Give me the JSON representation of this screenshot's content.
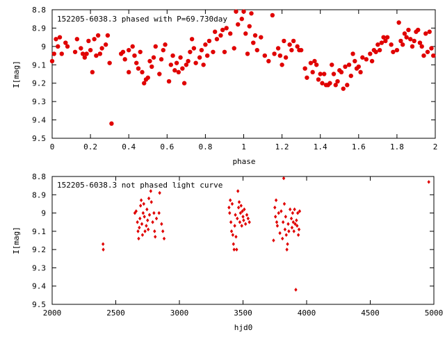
{
  "chart_data": [
    {
      "type": "scatter",
      "title": "152205-6038.3 phased with P=69.730day",
      "xlabel": "phase",
      "ylabel": "I[mag]",
      "xlim": [
        0,
        2
      ],
      "ylim": [
        9.5,
        8.8
      ],
      "y_inverted": true,
      "xticks": [
        "0",
        "0.2",
        "0.4",
        "0.6",
        "0.8",
        "1",
        "1.2",
        "1.4",
        "1.6",
        "1.8",
        "2"
      ],
      "xtick_values": [
        0,
        0.2,
        0.4,
        0.6,
        0.8,
        1.0,
        1.2,
        1.4,
        1.6,
        1.8,
        2.0
      ],
      "yticks": [
        "8.8",
        "8.9",
        "9",
        "9.1",
        "9.2",
        "9.3",
        "9.4",
        "9.5"
      ],
      "ytick_values": [
        8.8,
        8.9,
        9.0,
        9.1,
        9.2,
        9.3,
        9.4,
        9.5
      ],
      "grid": false,
      "marker_color": "#e00000",
      "points": [
        [
          0.0,
          9.08
        ],
        [
          0.01,
          9.04
        ],
        [
          0.02,
          8.96
        ],
        [
          0.03,
          9.0
        ],
        [
          0.04,
          8.95
        ],
        [
          0.05,
          9.04
        ],
        [
          0.07,
          8.98
        ],
        [
          0.08,
          9.0
        ],
        [
          0.12,
          9.03
        ],
        [
          0.13,
          8.96
        ],
        [
          0.15,
          9.01
        ],
        [
          0.16,
          9.04
        ],
        [
          0.17,
          9.06
        ],
        [
          0.18,
          9.04
        ],
        [
          0.19,
          8.97
        ],
        [
          0.2,
          9.02
        ],
        [
          0.21,
          9.14
        ],
        [
          0.22,
          8.96
        ],
        [
          0.23,
          9.05
        ],
        [
          0.24,
          8.94
        ],
        [
          0.25,
          9.04
        ],
        [
          0.26,
          9.01
        ],
        [
          0.28,
          8.99
        ],
        [
          0.29,
          8.94
        ],
        [
          0.3,
          9.09
        ],
        [
          0.31,
          9.42
        ],
        [
          0.36,
          9.04
        ],
        [
          0.37,
          9.03
        ],
        [
          0.38,
          9.07
        ],
        [
          0.4,
          9.14
        ],
        [
          0.4,
          9.02
        ],
        [
          0.42,
          9.0
        ],
        [
          0.43,
          9.05
        ],
        [
          0.44,
          9.09
        ],
        [
          0.45,
          9.12
        ],
        [
          0.46,
          9.03
        ],
        [
          0.47,
          9.14
        ],
        [
          0.48,
          9.2
        ],
        [
          0.49,
          9.18
        ],
        [
          0.5,
          9.17
        ],
        [
          0.51,
          9.08
        ],
        [
          0.52,
          9.11
        ],
        [
          0.53,
          9.06
        ],
        [
          0.54,
          9.0
        ],
        [
          0.56,
          9.15
        ],
        [
          0.57,
          9.07
        ],
        [
          0.58,
          9.02
        ],
        [
          0.59,
          8.99
        ],
        [
          0.61,
          9.19
        ],
        [
          0.62,
          9.1
        ],
        [
          0.63,
          9.05
        ],
        [
          0.64,
          9.13
        ],
        [
          0.65,
          9.09
        ],
        [
          0.66,
          9.14
        ],
        [
          0.67,
          9.06
        ],
        [
          0.68,
          9.12
        ],
        [
          0.69,
          9.2
        ],
        [
          0.7,
          9.1
        ],
        [
          0.71,
          9.08
        ],
        [
          0.72,
          9.03
        ],
        [
          0.73,
          8.96
        ],
        [
          0.74,
          9.01
        ],
        [
          0.75,
          9.09
        ],
        [
          0.77,
          9.06
        ],
        [
          0.78,
          9.02
        ],
        [
          0.79,
          9.1
        ],
        [
          0.8,
          8.99
        ],
        [
          0.81,
          9.05
        ],
        [
          0.82,
          8.97
        ],
        [
          0.84,
          9.03
        ],
        [
          0.85,
          8.92
        ],
        [
          0.86,
          8.96
        ],
        [
          0.88,
          8.94
        ],
        [
          0.89,
          8.91
        ],
        [
          0.9,
          9.03
        ],
        [
          0.91,
          8.9
        ],
        [
          0.93,
          8.93
        ],
        [
          0.95,
          9.01
        ],
        [
          0.96,
          8.81
        ],
        [
          0.97,
          8.88
        ],
        [
          0.99,
          8.85
        ],
        [
          1.0,
          8.81
        ],
        [
          1.01,
          8.93
        ],
        [
          1.02,
          9.04
        ],
        [
          1.03,
          8.89
        ],
        [
          1.04,
          8.82
        ],
        [
          1.05,
          8.98
        ],
        [
          1.06,
          8.94
        ],
        [
          1.07,
          9.02
        ],
        [
          1.09,
          8.95
        ],
        [
          1.11,
          9.05
        ],
        [
          1.13,
          9.08
        ],
        [
          1.15,
          8.83
        ],
        [
          1.16,
          9.04
        ],
        [
          1.18,
          9.01
        ],
        [
          1.19,
          9.05
        ],
        [
          1.2,
          9.1
        ],
        [
          1.21,
          8.97
        ],
        [
          1.22,
          9.06
        ],
        [
          1.24,
          8.99
        ],
        [
          1.25,
          9.02
        ],
        [
          1.26,
          8.97
        ],
        [
          1.28,
          9.0
        ],
        [
          1.29,
          9.02
        ],
        [
          1.3,
          9.02
        ],
        [
          1.32,
          9.12
        ],
        [
          1.33,
          9.17
        ],
        [
          1.35,
          9.09
        ],
        [
          1.36,
          9.14
        ],
        [
          1.37,
          9.08
        ],
        [
          1.38,
          9.1
        ],
        [
          1.39,
          9.18
        ],
        [
          1.4,
          9.15
        ],
        [
          1.41,
          9.2
        ],
        [
          1.42,
          9.15
        ],
        [
          1.43,
          9.21
        ],
        [
          1.44,
          9.21
        ],
        [
          1.45,
          9.2
        ],
        [
          1.46,
          9.1
        ],
        [
          1.47,
          9.15
        ],
        [
          1.48,
          9.21
        ],
        [
          1.49,
          9.19
        ],
        [
          1.5,
          9.13
        ],
        [
          1.51,
          9.14
        ],
        [
          1.52,
          9.23
        ],
        [
          1.53,
          9.11
        ],
        [
          1.54,
          9.21
        ],
        [
          1.55,
          9.1
        ],
        [
          1.56,
          9.16
        ],
        [
          1.57,
          9.04
        ],
        [
          1.58,
          9.08
        ],
        [
          1.59,
          9.12
        ],
        [
          1.6,
          9.11
        ],
        [
          1.61,
          9.14
        ],
        [
          1.62,
          9.06
        ],
        [
          1.64,
          9.07
        ],
        [
          1.66,
          9.04
        ],
        [
          1.67,
          9.08
        ],
        [
          1.68,
          9.02
        ],
        [
          1.69,
          9.03
        ],
        [
          1.7,
          8.99
        ],
        [
          1.71,
          9.02
        ],
        [
          1.72,
          8.98
        ],
        [
          1.73,
          8.95
        ],
        [
          1.74,
          8.97
        ],
        [
          1.75,
          8.95
        ],
        [
          1.77,
          8.99
        ],
        [
          1.78,
          9.03
        ],
        [
          1.8,
          9.02
        ],
        [
          1.81,
          8.87
        ],
        [
          1.82,
          8.97
        ],
        [
          1.83,
          8.99
        ],
        [
          1.84,
          8.93
        ],
        [
          1.85,
          8.95
        ],
        [
          1.86,
          8.91
        ],
        [
          1.87,
          8.96
        ],
        [
          1.88,
          9.0
        ],
        [
          1.89,
          8.97
        ],
        [
          1.9,
          8.92
        ],
        [
          1.91,
          8.91
        ],
        [
          1.92,
          8.98
        ],
        [
          1.93,
          9.0
        ],
        [
          1.94,
          9.05
        ],
        [
          1.95,
          8.93
        ],
        [
          1.96,
          9.03
        ],
        [
          1.97,
          8.92
        ],
        [
          1.98,
          9.01
        ],
        [
          1.99,
          9.05
        ]
      ]
    },
    {
      "type": "scatter",
      "title": "152205-6038.3 not phased light curve",
      "xlabel": "hjd0",
      "ylabel": "I[mag]",
      "xlim": [
        2000,
        5000
      ],
      "ylim": [
        9.5,
        8.8
      ],
      "y_inverted": true,
      "xticks": [
        "2000",
        "2500",
        "3000",
        "3500",
        "4000",
        "4500",
        "5000"
      ],
      "xtick_values": [
        2000,
        2500,
        3000,
        3500,
        4000,
        4500,
        5000
      ],
      "yticks": [
        "8.8",
        "8.9",
        "9",
        "9.1",
        "9.2",
        "9.3",
        "9.4",
        "9.5"
      ],
      "ytick_values": [
        8.8,
        8.9,
        9.0,
        9.1,
        9.2,
        9.3,
        9.4,
        9.5
      ],
      "grid": false,
      "marker_color": "#e00000",
      "points": [
        [
          2400,
          9.17
        ],
        [
          2402,
          9.2
        ],
        [
          2650,
          9.0
        ],
        [
          2660,
          8.99
        ],
        [
          2670,
          9.05
        ],
        [
          2675,
          9.1
        ],
        [
          2680,
          9.14
        ],
        [
          2685,
          9.08
        ],
        [
          2690,
          9.03
        ],
        [
          2695,
          8.96
        ],
        [
          2700,
          8.93
        ],
        [
          2705,
          9.06
        ],
        [
          2710,
          9.12
        ],
        [
          2715,
          9.0
        ],
        [
          2720,
          8.95
        ],
        [
          2725,
          9.02
        ],
        [
          2730,
          9.1
        ],
        [
          2740,
          9.07
        ],
        [
          2745,
          8.98
        ],
        [
          2750,
          9.04
        ],
        [
          2755,
          9.09
        ],
        [
          2760,
          8.92
        ],
        [
          2765,
          9.01
        ],
        [
          2775,
          8.88
        ],
        [
          2780,
          8.94
        ],
        [
          2790,
          9.05
        ],
        [
          2800,
          9.0
        ],
        [
          2805,
          9.1
        ],
        [
          2810,
          9.13
        ],
        [
          2820,
          9.03
        ],
        [
          2840,
          9.0
        ],
        [
          2845,
          8.89
        ],
        [
          2860,
          9.06
        ],
        [
          2870,
          9.1
        ],
        [
          2880,
          9.14
        ],
        [
          3390,
          8.97
        ],
        [
          3395,
          9.0
        ],
        [
          3400,
          8.93
        ],
        [
          3405,
          9.05
        ],
        [
          3410,
          9.1
        ],
        [
          3415,
          8.95
        ],
        [
          3420,
          9.12
        ],
        [
          3425,
          9.17
        ],
        [
          3430,
          9.2
        ],
        [
          3435,
          9.07
        ],
        [
          3440,
          9.01
        ],
        [
          3445,
          9.13
        ],
        [
          3450,
          9.2
        ],
        [
          3455,
          9.03
        ],
        [
          3460,
          8.88
        ],
        [
          3465,
          8.97
        ],
        [
          3470,
          8.94
        ],
        [
          3475,
          9.05
        ],
        [
          3480,
          9.0
        ],
        [
          3485,
          8.96
        ],
        [
          3490,
          9.07
        ],
        [
          3495,
          8.99
        ],
        [
          3500,
          9.02
        ],
        [
          3505,
          9.04
        ],
        [
          3510,
          8.98
        ],
        [
          3520,
          9.06
        ],
        [
          3530,
          9.01
        ],
        [
          3540,
          9.03
        ],
        [
          3550,
          9.05
        ],
        [
          3740,
          9.15
        ],
        [
          3750,
          8.97
        ],
        [
          3755,
          9.02
        ],
        [
          3760,
          8.93
        ],
        [
          3765,
          9.05
        ],
        [
          3770,
          9.07
        ],
        [
          3780,
          9.0
        ],
        [
          3790,
          9.11
        ],
        [
          3800,
          8.99
        ],
        [
          3810,
          9.14
        ],
        [
          3815,
          9.05
        ],
        [
          3820,
          8.81
        ],
        [
          3825,
          8.95
        ],
        [
          3830,
          9.09
        ],
        [
          3835,
          9.02
        ],
        [
          3840,
          9.12
        ],
        [
          3845,
          9.2
        ],
        [
          3850,
          9.17
        ],
        [
          3855,
          9.06
        ],
        [
          3860,
          9.1
        ],
        [
          3870,
          8.98
        ],
        [
          3880,
          9.03
        ],
        [
          3885,
          9.08
        ],
        [
          3890,
          9.0
        ],
        [
          3895,
          9.05
        ],
        [
          3900,
          9.1
        ],
        [
          3905,
          8.98
        ],
        [
          3910,
          9.06
        ],
        [
          3915,
          9.42
        ],
        [
          3920,
          9.04
        ],
        [
          3925,
          9.07
        ],
        [
          3930,
          9.0
        ],
        [
          3935,
          9.12
        ],
        [
          3940,
          9.09
        ],
        [
          3945,
          8.99
        ],
        [
          4960,
          8.83
        ]
      ]
    }
  ]
}
